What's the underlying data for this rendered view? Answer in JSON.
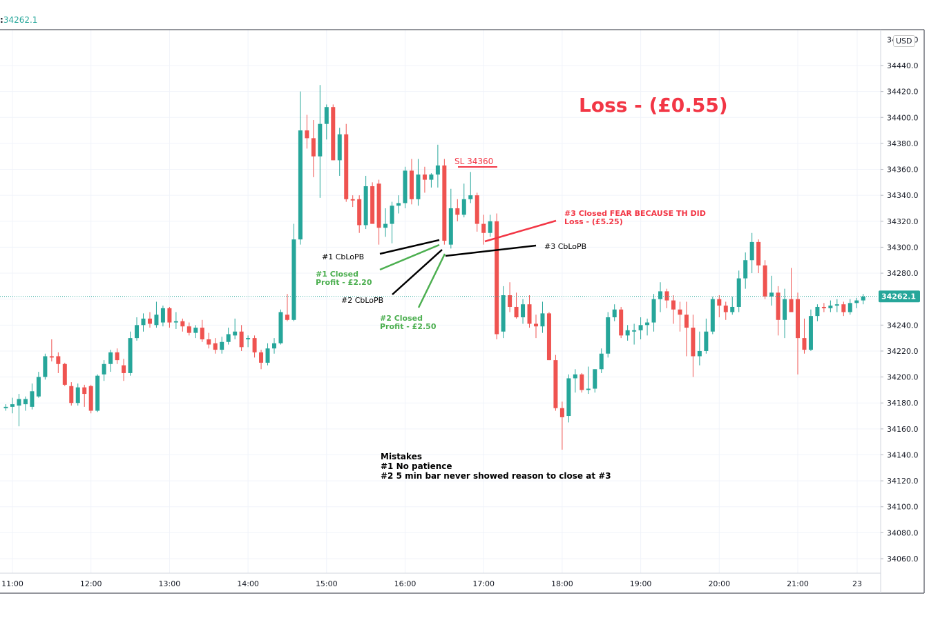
{
  "header": {
    "last_price": "34262.1"
  },
  "price_scale": {
    "currency": "USD"
  },
  "colors": {
    "up": "#26a69a",
    "down": "#ef5350",
    "grid": "#f0f3fa",
    "annotation_red": "#f23645",
    "annotation_green": "#4caf50",
    "annotation_black": "#000000"
  },
  "chart_data": {
    "type": "candlestick",
    "interval_minutes": 5,
    "x_range": [
      "10:55",
      "23:00"
    ],
    "ylim": [
      34050,
      34485
    ],
    "y_ticks": [
      34060,
      34080,
      34100,
      34120,
      34140,
      34160,
      34180,
      34200,
      34220,
      34240,
      34260,
      34280,
      34300,
      34320,
      34340,
      34360,
      34380,
      34400,
      34420,
      34440
    ],
    "y_tick_labels": [
      "34060.0",
      "34080.0",
      "34100.0",
      "34120.0",
      "34140.0",
      "34160.0",
      "34180.0",
      "34200.0",
      "34220.0",
      "34240.0",
      "34260.0",
      "34280.0",
      "34300.0",
      "34320.0",
      "34340.0",
      "34360.0",
      "34380.0",
      "34400.0",
      "34420.0",
      "34440.0"
    ],
    "x_tick_labels": [
      "11:00",
      "12:00",
      "13:00",
      "14:00",
      "15:00",
      "16:00",
      "17:00",
      "18:00",
      "19:00",
      "20:00",
      "21:00",
      "23"
    ],
    "last_price_line": 34262.1,
    "last_price_label": "34262.1",
    "candles": [
      {
        "t": "10:55",
        "o": 34176,
        "h": 34179,
        "l": 34174,
        "c": 34177
      },
      {
        "t": "11:00",
        "o": 34177,
        "h": 34184,
        "l": 34172,
        "c": 34179
      },
      {
        "t": "11:05",
        "o": 34178,
        "h": 34187,
        "l": 34162,
        "c": 34183
      },
      {
        "t": "11:10",
        "o": 34179,
        "h": 34185,
        "l": 34174,
        "c": 34183
      },
      {
        "t": "11:15",
        "o": 34177,
        "h": 34195,
        "l": 34175,
        "c": 34189
      },
      {
        "t": "11:20",
        "o": 34185,
        "h": 34204,
        "l": 34184,
        "c": 34200
      },
      {
        "t": "11:25",
        "o": 34200,
        "h": 34218,
        "l": 34198,
        "c": 34216
      },
      {
        "t": "11:30",
        "o": 34216,
        "h": 34229,
        "l": 34212,
        "c": 34215
      },
      {
        "t": "11:35",
        "o": 34216,
        "h": 34219,
        "l": 34203,
        "c": 34210
      },
      {
        "t": "11:40",
        "o": 34210,
        "h": 34211,
        "l": 34193,
        "c": 34194
      },
      {
        "t": "11:45",
        "o": 34193,
        "h": 34196,
        "l": 34178,
        "c": 34180
      },
      {
        "t": "11:50",
        "o": 34180,
        "h": 34195,
        "l": 34178,
        "c": 34192
      },
      {
        "t": "11:55",
        "o": 34192,
        "h": 34194,
        "l": 34177,
        "c": 34187
      },
      {
        "t": "12:00",
        "o": 34193,
        "h": 34194,
        "l": 34172,
        "c": 34174
      },
      {
        "t": "12:05",
        "o": 34174,
        "h": 34202,
        "l": 34173,
        "c": 34201
      },
      {
        "t": "12:10",
        "o": 34202,
        "h": 34213,
        "l": 34197,
        "c": 34210
      },
      {
        "t": "12:15",
        "o": 34210,
        "h": 34221,
        "l": 34204,
        "c": 34219
      },
      {
        "t": "12:20",
        "o": 34219,
        "h": 34222,
        "l": 34210,
        "c": 34213
      },
      {
        "t": "12:25",
        "o": 34209,
        "h": 34214,
        "l": 34197,
        "c": 34203
      },
      {
        "t": "12:30",
        "o": 34203,
        "h": 34235,
        "l": 34201,
        "c": 34230
      },
      {
        "t": "12:35",
        "o": 34230,
        "h": 34246,
        "l": 34228,
        "c": 34240
      },
      {
        "t": "12:40",
        "o": 34240,
        "h": 34249,
        "l": 34235,
        "c": 34245
      },
      {
        "t": "12:45",
        "o": 34245,
        "h": 34250,
        "l": 34238,
        "c": 34241
      },
      {
        "t": "12:50",
        "o": 34240,
        "h": 34258,
        "l": 34238,
        "c": 34248
      },
      {
        "t": "12:55",
        "o": 34242,
        "h": 34255,
        "l": 34239,
        "c": 34253
      },
      {
        "t": "13:00",
        "o": 34253,
        "h": 34254,
        "l": 34238,
        "c": 34242
      },
      {
        "t": "13:05",
        "o": 34242,
        "h": 34250,
        "l": 34237,
        "c": 34243
      },
      {
        "t": "13:10",
        "o": 34243,
        "h": 34245,
        "l": 34235,
        "c": 34239
      },
      {
        "t": "13:15",
        "o": 34239,
        "h": 34242,
        "l": 34232,
        "c": 34234
      },
      {
        "t": "13:20",
        "o": 34234,
        "h": 34240,
        "l": 34230,
        "c": 34238
      },
      {
        "t": "13:25",
        "o": 34238,
        "h": 34244,
        "l": 34227,
        "c": 34229
      },
      {
        "t": "13:30",
        "o": 34229,
        "h": 34234,
        "l": 34222,
        "c": 34225
      },
      {
        "t": "13:35",
        "o": 34226,
        "h": 34230,
        "l": 34218,
        "c": 34221
      },
      {
        "t": "13:40",
        "o": 34221,
        "h": 34231,
        "l": 34218,
        "c": 34227
      },
      {
        "t": "13:45",
        "o": 34227,
        "h": 34238,
        "l": 34225,
        "c": 34233
      },
      {
        "t": "13:50",
        "o": 34232,
        "h": 34245,
        "l": 34229,
        "c": 34235
      },
      {
        "t": "13:55",
        "o": 34235,
        "h": 34240,
        "l": 34220,
        "c": 34223
      },
      {
        "t": "14:00",
        "o": 34229,
        "h": 34232,
        "l": 34223,
        "c": 34230
      },
      {
        "t": "14:05",
        "o": 34230,
        "h": 34232,
        "l": 34215,
        "c": 34219
      },
      {
        "t": "14:10",
        "o": 34219,
        "h": 34221,
        "l": 34206,
        "c": 34211
      },
      {
        "t": "14:15",
        "o": 34211,
        "h": 34226,
        "l": 34209,
        "c": 34222
      },
      {
        "t": "14:20",
        "o": 34222,
        "h": 34230,
        "l": 34218,
        "c": 34226
      },
      {
        "t": "14:25",
        "o": 34226,
        "h": 34252,
        "l": 34225,
        "c": 34250
      },
      {
        "t": "14:30",
        "o": 34248,
        "h": 34264,
        "l": 34243,
        "c": 34244
      },
      {
        "t": "14:35",
        "o": 34244,
        "h": 34318,
        "l": 34243,
        "c": 34306
      },
      {
        "t": "14:40",
        "o": 34306,
        "h": 34420,
        "l": 34302,
        "c": 34390
      },
      {
        "t": "14:45",
        "o": 34390,
        "h": 34402,
        "l": 34376,
        "c": 34384
      },
      {
        "t": "14:50",
        "o": 34384,
        "h": 34398,
        "l": 34354,
        "c": 34370
      },
      {
        "t": "14:55",
        "o": 34370,
        "h": 34425,
        "l": 34338,
        "c": 34395
      },
      {
        "t": "15:00",
        "o": 34395,
        "h": 34410,
        "l": 34383,
        "c": 34408
      },
      {
        "t": "15:05",
        "o": 34408,
        "h": 34410,
        "l": 34367,
        "c": 34367
      },
      {
        "t": "15:10",
        "o": 34367,
        "h": 34392,
        "l": 34355,
        "c": 34387
      },
      {
        "t": "15:15",
        "o": 34387,
        "h": 34395,
        "l": 34335,
        "c": 34337
      },
      {
        "t": "15:20",
        "o": 34337,
        "h": 34340,
        "l": 34331,
        "c": 34336
      },
      {
        "t": "15:25",
        "o": 34337,
        "h": 34340,
        "l": 34311,
        "c": 34317
      },
      {
        "t": "15:30",
        "o": 34317,
        "h": 34355,
        "l": 34314,
        "c": 34347
      },
      {
        "t": "15:35",
        "o": 34347,
        "h": 34350,
        "l": 34318,
        "c": 34318
      },
      {
        "t": "15:40",
        "o": 34349,
        "h": 34352,
        "l": 34302,
        "c": 34315
      },
      {
        "t": "15:45",
        "o": 34315,
        "h": 34330,
        "l": 34308,
        "c": 34318
      },
      {
        "t": "15:50",
        "o": 34318,
        "h": 34335,
        "l": 34303,
        "c": 34332
      },
      {
        "t": "15:55",
        "o": 34332,
        "h": 34340,
        "l": 34326,
        "c": 34334
      },
      {
        "t": "16:00",
        "o": 34334,
        "h": 34362,
        "l": 34330,
        "c": 34359
      },
      {
        "t": "16:05",
        "o": 34359,
        "h": 34368,
        "l": 34333,
        "c": 34337
      },
      {
        "t": "16:10",
        "o": 34337,
        "h": 34368,
        "l": 34332,
        "c": 34356
      },
      {
        "t": "16:15",
        "o": 34356,
        "h": 34362,
        "l": 34342,
        "c": 34352
      },
      {
        "t": "16:20",
        "o": 34352,
        "h": 34357,
        "l": 34346,
        "c": 34356
      },
      {
        "t": "16:25",
        "o": 34356,
        "h": 34379,
        "l": 34346,
        "c": 34363
      },
      {
        "t": "16:30",
        "o": 34363,
        "h": 34368,
        "l": 34302,
        "c": 34305
      },
      {
        "t": "16:35",
        "o": 34302,
        "h": 34345,
        "l": 34299,
        "c": 34330
      },
      {
        "t": "16:40",
        "o": 34330,
        "h": 34337,
        "l": 34320,
        "c": 34325
      },
      {
        "t": "16:45",
        "o": 34325,
        "h": 34349,
        "l": 34323,
        "c": 34337
      },
      {
        "t": "16:50",
        "o": 34337,
        "h": 34358,
        "l": 34334,
        "c": 34340
      },
      {
        "t": "16:55",
        "o": 34340,
        "h": 34342,
        "l": 34312,
        "c": 34318
      },
      {
        "t": "17:00",
        "o": 34318,
        "h": 34325,
        "l": 34302,
        "c": 34311
      },
      {
        "t": "17:05",
        "o": 34311,
        "h": 34325,
        "l": 34308,
        "c": 34320
      },
      {
        "t": "17:10",
        "o": 34320,
        "h": 34326,
        "l": 34229,
        "c": 34233
      },
      {
        "t": "17:15",
        "o": 34235,
        "h": 34270,
        "l": 34230,
        "c": 34263
      },
      {
        "t": "17:20",
        "o": 34263,
        "h": 34273,
        "l": 34250,
        "c": 34254
      },
      {
        "t": "17:25",
        "o": 34254,
        "h": 34265,
        "l": 34245,
        "c": 34246
      },
      {
        "t": "17:30",
        "o": 34246,
        "h": 34260,
        "l": 34241,
        "c": 34256
      },
      {
        "t": "17:35",
        "o": 34256,
        "h": 34263,
        "l": 34238,
        "c": 34241
      },
      {
        "t": "17:40",
        "o": 34241,
        "h": 34248,
        "l": 34230,
        "c": 34239
      },
      {
        "t": "17:45",
        "o": 34239,
        "h": 34258,
        "l": 34234,
        "c": 34249
      },
      {
        "t": "17:50",
        "o": 34249,
        "h": 34250,
        "l": 34213,
        "c": 34213
      },
      {
        "t": "17:55",
        "o": 34213,
        "h": 34217,
        "l": 34174,
        "c": 34176
      },
      {
        "t": "18:00",
        "o": 34176,
        "h": 34181,
        "l": 34144,
        "c": 34169
      },
      {
        "t": "18:05",
        "o": 34170,
        "h": 34202,
        "l": 34165,
        "c": 34199
      },
      {
        "t": "18:10",
        "o": 34199,
        "h": 34206,
        "l": 34188,
        "c": 34202
      },
      {
        "t": "18:15",
        "o": 34202,
        "h": 34203,
        "l": 34188,
        "c": 34190
      },
      {
        "t": "18:20",
        "o": 34190,
        "h": 34208,
        "l": 34187,
        "c": 34191
      },
      {
        "t": "18:25",
        "o": 34191,
        "h": 34206,
        "l": 34188,
        "c": 34206
      },
      {
        "t": "18:30",
        "o": 34206,
        "h": 34222,
        "l": 34203,
        "c": 34218
      },
      {
        "t": "18:35",
        "o": 34218,
        "h": 34250,
        "l": 34215,
        "c": 34246
      },
      {
        "t": "18:40",
        "o": 34246,
        "h": 34256,
        "l": 34243,
        "c": 34252
      },
      {
        "t": "18:45",
        "o": 34252,
        "h": 34254,
        "l": 34230,
        "c": 34232
      },
      {
        "t": "18:50",
        "o": 34232,
        "h": 34240,
        "l": 34228,
        "c": 34236
      },
      {
        "t": "18:55",
        "o": 34235,
        "h": 34241,
        "l": 34225,
        "c": 34236
      },
      {
        "t": "19:00",
        "o": 34236,
        "h": 34246,
        "l": 34229,
        "c": 34240
      },
      {
        "t": "19:05",
        "o": 34240,
        "h": 34245,
        "l": 34232,
        "c": 34242
      },
      {
        "t": "19:10",
        "o": 34242,
        "h": 34264,
        "l": 34235,
        "c": 34260
      },
      {
        "t": "19:15",
        "o": 34260,
        "h": 34273,
        "l": 34250,
        "c": 34266
      },
      {
        "t": "19:20",
        "o": 34266,
        "h": 34268,
        "l": 34253,
        "c": 34259
      },
      {
        "t": "19:25",
        "o": 34259,
        "h": 34263,
        "l": 34241,
        "c": 34252
      },
      {
        "t": "19:30",
        "o": 34252,
        "h": 34258,
        "l": 34235,
        "c": 34248
      },
      {
        "t": "19:35",
        "o": 34248,
        "h": 34258,
        "l": 34216,
        "c": 34238
      },
      {
        "t": "19:40",
        "o": 34238,
        "h": 34248,
        "l": 34200,
        "c": 34216
      },
      {
        "t": "19:45",
        "o": 34216,
        "h": 34235,
        "l": 34209,
        "c": 34220
      },
      {
        "t": "19:50",
        "o": 34220,
        "h": 34245,
        "l": 34218,
        "c": 34235
      },
      {
        "t": "19:55",
        "o": 34235,
        "h": 34262,
        "l": 34233,
        "c": 34260
      },
      {
        "t": "20:00",
        "o": 34260,
        "h": 34263,
        "l": 34246,
        "c": 34255
      },
      {
        "t": "20:05",
        "o": 34255,
        "h": 34258,
        "l": 34244,
        "c": 34250
      },
      {
        "t": "20:10",
        "o": 34250,
        "h": 34262,
        "l": 34248,
        "c": 34254
      },
      {
        "t": "20:15",
        "o": 34254,
        "h": 34282,
        "l": 34250,
        "c": 34276
      },
      {
        "t": "20:20",
        "o": 34276,
        "h": 34296,
        "l": 34268,
        "c": 34290
      },
      {
        "t": "20:25",
        "o": 34290,
        "h": 34311,
        "l": 34280,
        "c": 34304
      },
      {
        "t": "20:30",
        "o": 34304,
        "h": 34306,
        "l": 34280,
        "c": 34286
      },
      {
        "t": "20:35",
        "o": 34286,
        "h": 34290,
        "l": 34260,
        "c": 34262
      },
      {
        "t": "20:40",
        "o": 34262,
        "h": 34278,
        "l": 34255,
        "c": 34265
      },
      {
        "t": "20:45",
        "o": 34265,
        "h": 34270,
        "l": 34232,
        "c": 34244
      },
      {
        "t": "20:50",
        "o": 34244,
        "h": 34268,
        "l": 34230,
        "c": 34260
      },
      {
        "t": "20:55",
        "o": 34260,
        "h": 34284,
        "l": 34254,
        "c": 34250
      },
      {
        "t": "21:00",
        "o": 34260,
        "h": 34265,
        "l": 34202,
        "c": 34230
      },
      {
        "t": "21:05",
        "o": 34230,
        "h": 34245,
        "l": 34218,
        "c": 34221
      },
      {
        "t": "21:10",
        "o": 34221,
        "h": 34252,
        "l": 34220,
        "c": 34247
      },
      {
        "t": "21:15",
        "o": 34247,
        "h": 34256,
        "l": 34243,
        "c": 34254
      },
      {
        "t": "21:20",
        "o": 34254,
        "h": 34257,
        "l": 34250,
        "c": 34253
      },
      {
        "t": "21:25",
        "o": 34253,
        "h": 34259,
        "l": 34250,
        "c": 34255
      },
      {
        "t": "21:30",
        "o": 34255,
        "h": 34260,
        "l": 34250,
        "c": 34256
      },
      {
        "t": "21:35",
        "o": 34256,
        "h": 34258,
        "l": 34247,
        "c": 34250
      },
      {
        "t": "21:40",
        "o": 34250,
        "h": 34260,
        "l": 34248,
        "c": 34257
      },
      {
        "t": "21:45",
        "o": 34257,
        "h": 34261,
        "l": 34253,
        "c": 34259
      },
      {
        "t": "21:50",
        "o": 34259,
        "h": 34264,
        "l": 34256,
        "c": 34262
      }
    ]
  },
  "annotations": {
    "loss_title": "Loss - (£0.55)",
    "sl_label": "SL 34360",
    "entry1": "#1 CbLoPB",
    "entry1_closed_line1": "#1 Closed",
    "entry1_closed_line2": "Profit - £2.20",
    "entry2": "#2 CbLoPB",
    "entry2_closed_line1": "#2 Closed",
    "entry2_closed_line2": "Profit - £2.50",
    "entry3": "#3 CbLoPB",
    "entry3_closed_line1": "#3 Closed FEAR BECAUSE TH DID",
    "entry3_closed_line2": "Loss - (£5.25)",
    "mistakes_heading": "Mistakes",
    "mistake1": "#1  No patience",
    "mistake2": "#2  5 min bar never showed reason to close at #3"
  }
}
